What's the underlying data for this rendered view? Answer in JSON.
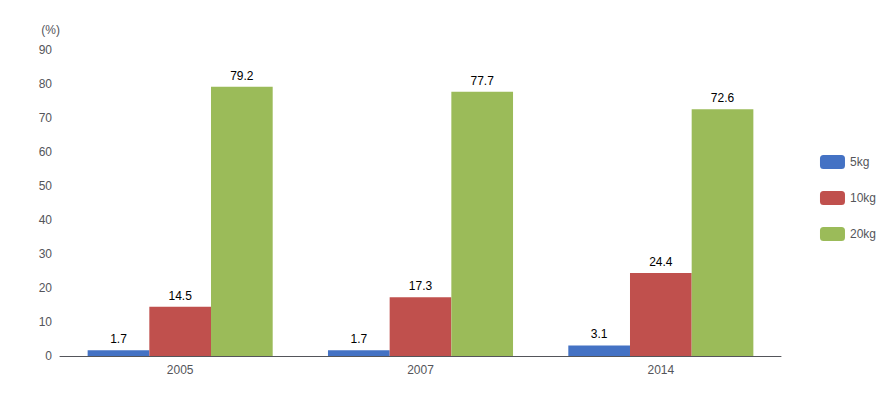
{
  "chart_data": {
    "type": "bar",
    "ylabel": "(%)",
    "categories": [
      "2005",
      "2007",
      "2014"
    ],
    "series": [
      {
        "name": "5kg",
        "color": "#4472C4",
        "values": [
          1.7,
          1.7,
          3.1
        ]
      },
      {
        "name": "10kg",
        "color": "#C0504D",
        "values": [
          14.5,
          17.3,
          24.4
        ]
      },
      {
        "name": "20kg",
        "color": "#9BBB59",
        "values": [
          79.2,
          77.7,
          72.6
        ]
      }
    ],
    "ylim": [
      0,
      90
    ],
    "yticks": [
      0,
      10,
      20,
      30,
      40,
      50,
      60,
      70,
      80,
      90
    ],
    "grid": false,
    "legend": "right",
    "data_labels": true
  }
}
